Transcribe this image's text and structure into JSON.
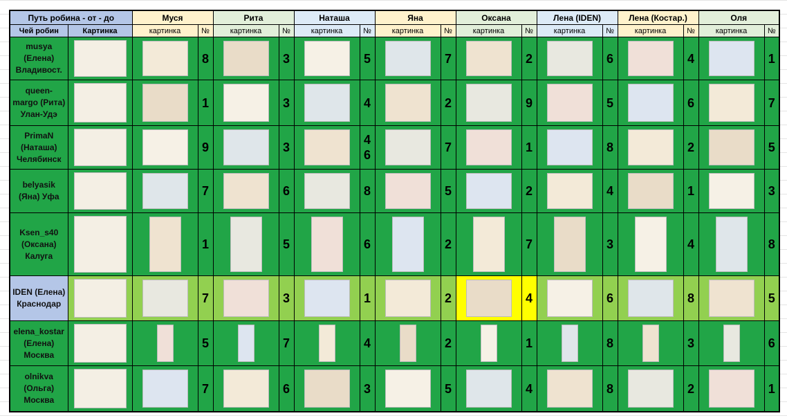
{
  "header": {
    "corner": "Путь робина - от - до",
    "participants": [
      "Муся",
      "Рита",
      "Наташа",
      "Яна",
      "Оксана",
      "Лена (IDEN)",
      "Лена (Костар.)",
      "Оля"
    ]
  },
  "subheader": {
    "owner": "Чей робин",
    "picture": "Картинка",
    "picture_col": "картинка",
    "number_col": "№"
  },
  "rows": [
    {
      "owner": [
        "musya",
        "(Елена)",
        "Владивост."
      ],
      "numbers": [
        8,
        3,
        5,
        7,
        2,
        6,
        4,
        1
      ]
    },
    {
      "owner": [
        "queen-",
        "margo (Рита)",
        "Улан-Удэ"
      ],
      "numbers": [
        1,
        3,
        4,
        2,
        9,
        5,
        6,
        7
      ]
    },
    {
      "owner": [
        "PrimaN",
        "(Наташа)",
        "Челябинск"
      ],
      "numbers": [
        9,
        3,
        [
          4,
          6
        ],
        7,
        1,
        8,
        2,
        5
      ]
    },
    {
      "owner": [
        "belyasik",
        "(Яна) Уфа"
      ],
      "numbers": [
        7,
        6,
        8,
        5,
        2,
        4,
        1,
        3
      ]
    },
    {
      "owner": [
        "Ksen_s40",
        "(Оксана)",
        "Калуга"
      ],
      "numbers": [
        1,
        5,
        6,
        2,
        7,
        3,
        4,
        8
      ]
    },
    {
      "owner": [
        "IDEN (Елена)",
        "Краснодар"
      ],
      "numbers": [
        7,
        3,
        1,
        2,
        4,
        6,
        8,
        5
      ]
    },
    {
      "owner": [
        "elena_kostar",
        "(Елена)",
        "Москва"
      ],
      "numbers": [
        5,
        7,
        4,
        2,
        1,
        8,
        3,
        6
      ]
    },
    {
      "owner": [
        "olnikva",
        "(Ольга)",
        "Москва"
      ],
      "numbers": [
        7,
        6,
        3,
        5,
        4,
        8,
        2,
        1
      ]
    }
  ]
}
